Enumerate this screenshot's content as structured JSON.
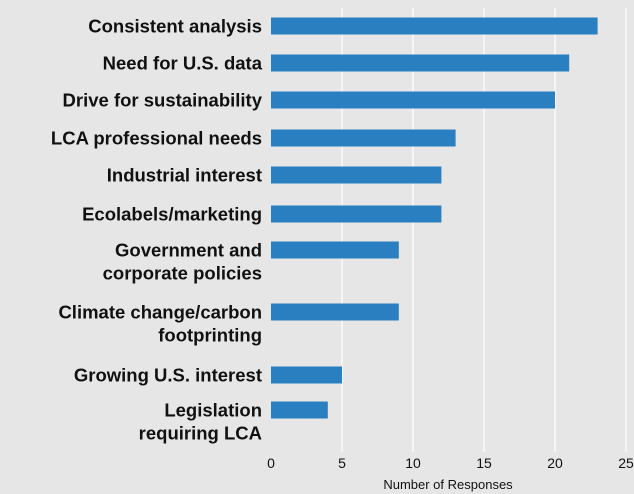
{
  "chart_data": {
    "type": "bar",
    "orientation": "horizontal",
    "categories": [
      [
        "Consistent analysis"
      ],
      [
        "Need for U.S. data"
      ],
      [
        "Drive for sustainability"
      ],
      [
        "LCA professional needs"
      ],
      [
        "Industrial interest"
      ],
      [
        "Ecolabels/marketing"
      ],
      [
        "Government and",
        "corporate policies"
      ],
      [
        "Climate change/carbon",
        "footprinting"
      ],
      [
        "Growing U.S. interest"
      ],
      [
        "Legislation",
        "requiring LCA"
      ]
    ],
    "values": [
      23,
      21,
      20,
      13,
      12,
      12,
      9,
      9,
      5,
      4
    ],
    "xlabel": "Number of Responses",
    "xlim": [
      0,
      25
    ],
    "xticks": [
      0,
      5,
      10,
      15,
      20,
      25
    ],
    "grid": "vertical",
    "bar_color": "#2a7fc1",
    "grid_color": "#ffffff",
    "background": "#e6e6e6"
  }
}
